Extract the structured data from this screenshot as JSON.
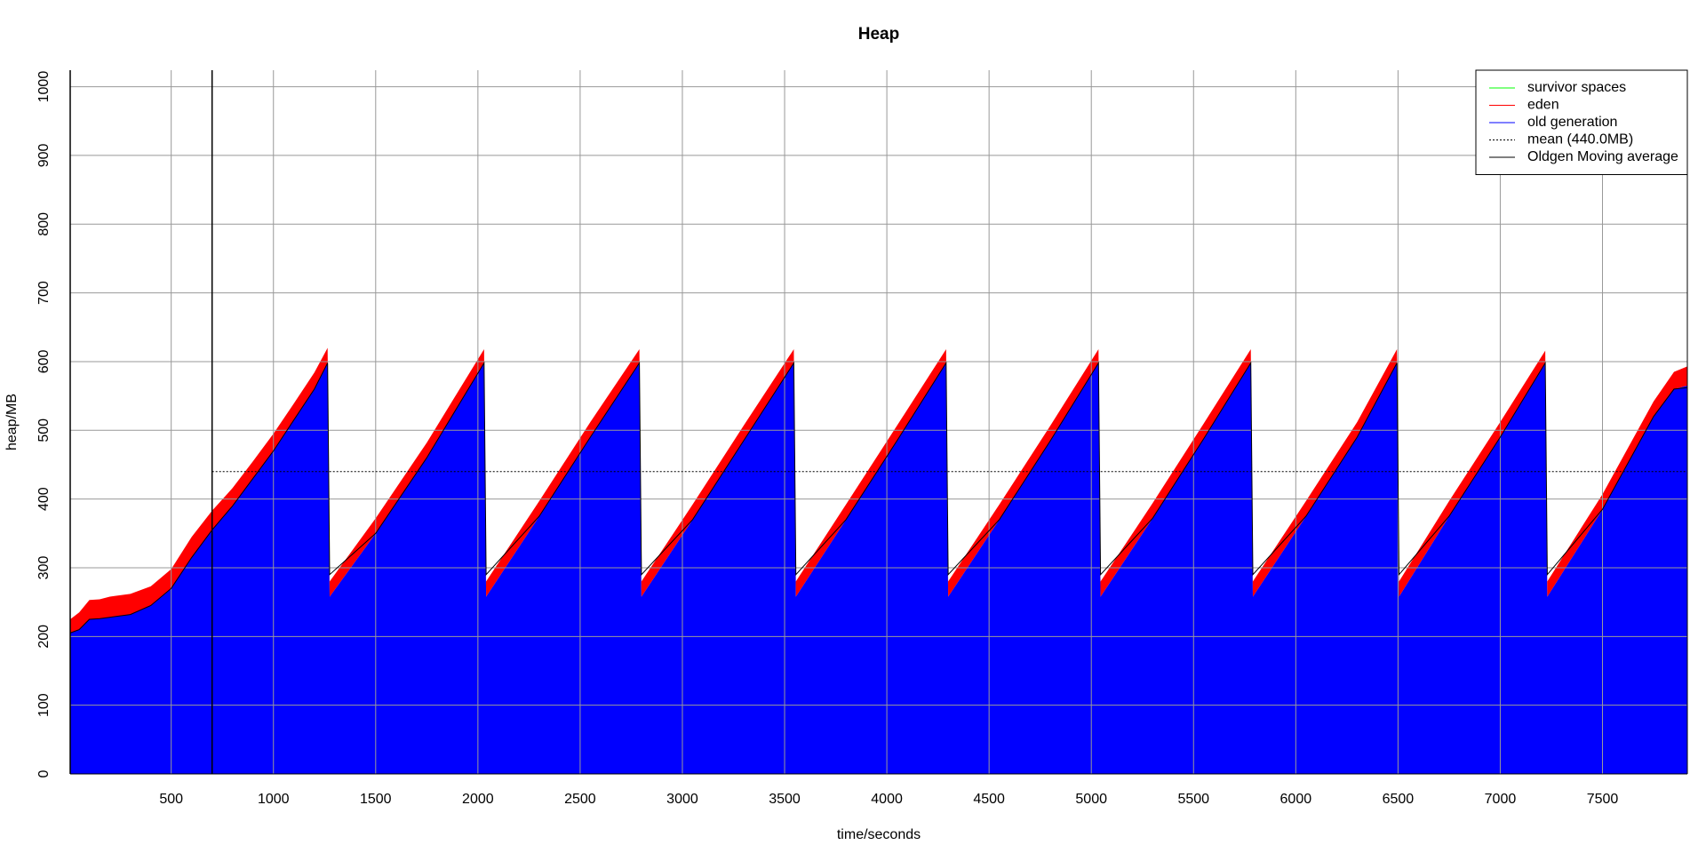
{
  "chart_data": {
    "type": "stacked-area",
    "title": "Heap",
    "x_label": "time/seconds",
    "y_label": "heap/MB",
    "x": [
      6,
      50,
      100,
      150,
      200,
      300,
      400,
      500,
      600,
      700,
      800,
      900,
      1000,
      1100,
      1200,
      1265,
      1275,
      1500,
      1750,
      2030,
      2040,
      2300,
      2550,
      2790,
      2800,
      3050,
      3300,
      3545,
      3555,
      3800,
      4050,
      4290,
      4300,
      4550,
      4800,
      5035,
      5045,
      5300,
      5550,
      5780,
      5790,
      6050,
      6300,
      6495,
      6505,
      6750,
      7000,
      7220,
      7230,
      7500,
      7750,
      7850,
      7915
    ],
    "series": [
      {
        "name": "survivor spaces",
        "color": "#00ff00",
        "values": [
          0,
          0,
          0,
          0,
          0,
          0,
          0,
          0,
          0,
          0,
          0,
          0,
          0,
          0,
          0,
          0,
          0,
          0,
          0,
          0,
          0,
          0,
          0,
          0,
          0,
          0,
          0,
          0,
          0,
          0,
          0,
          0,
          0,
          0,
          0,
          0,
          0,
          0,
          0,
          0,
          0,
          0,
          0,
          0,
          0,
          0,
          0,
          0,
          0,
          0,
          0,
          0,
          0
        ]
      },
      {
        "name": "eden",
        "color": "#ff0000",
        "values": [
          20,
          25,
          28,
          28,
          30,
          30,
          28,
          28,
          30,
          28,
          26,
          25,
          25,
          24,
          24,
          22,
          22,
          22,
          22,
          20,
          22,
          22,
          22,
          20,
          22,
          22,
          22,
          20,
          22,
          22,
          22,
          20,
          22,
          22,
          22,
          20,
          22,
          22,
          22,
          20,
          22,
          22,
          22,
          20,
          22,
          22,
          22,
          18,
          22,
          22,
          22,
          25,
          28
        ]
      },
      {
        "name": "old generation",
        "color": "#0000ff",
        "values": [
          205,
          210,
          225,
          226,
          228,
          232,
          245,
          270,
          315,
          355,
          390,
          430,
          470,
          515,
          560,
          598,
          258,
          350,
          460,
          598,
          258,
          375,
          490,
          598,
          258,
          370,
          485,
          598,
          258,
          370,
          485,
          598,
          258,
          370,
          485,
          598,
          258,
          372,
          488,
          598,
          258,
          375,
          490,
          598,
          258,
          375,
          490,
          598,
          258,
          385,
          520,
          560,
          565
        ]
      }
    ],
    "mean": {
      "name": "mean (440.0MB)",
      "value": 440
    },
    "moving_average": {
      "name": "Oldgen Moving average",
      "color": "#000000",
      "values": [
        205,
        210,
        225,
        226,
        228,
        232,
        245,
        270,
        315,
        355,
        390,
        430,
        470,
        515,
        560,
        598,
        290,
        350,
        460,
        598,
        290,
        375,
        490,
        598,
        290,
        370,
        485,
        598,
        290,
        370,
        485,
        598,
        290,
        370,
        485,
        598,
        290,
        372,
        488,
        598,
        290,
        375,
        490,
        598,
        290,
        375,
        490,
        598,
        290,
        385,
        520,
        560,
        562
      ]
    },
    "vline": 700,
    "xlim": [
      6,
      7915
    ],
    "ylim": [
      0,
      1024
    ],
    "xticks": [
      500,
      1000,
      1500,
      2000,
      2500,
      3000,
      3500,
      4000,
      4500,
      5000,
      5500,
      6000,
      6500,
      7000,
      7500
    ],
    "yticks": [
      0,
      100,
      200,
      300,
      400,
      500,
      600,
      700,
      800,
      900,
      1000
    ],
    "grid": true,
    "legend": "top-right"
  }
}
